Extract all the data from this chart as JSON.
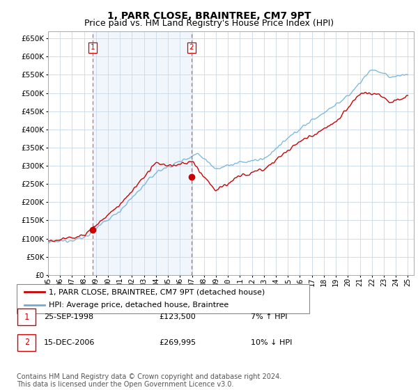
{
  "title": "1, PARR CLOSE, BRAINTREE, CM7 9PT",
  "subtitle": "Price paid vs. HM Land Registry's House Price Index (HPI)",
  "ytick_values": [
    0,
    50000,
    100000,
    150000,
    200000,
    250000,
    300000,
    350000,
    400000,
    450000,
    500000,
    550000,
    600000,
    650000
  ],
  "ylim": [
    0,
    670000
  ],
  "hpi_color": "#6baed6",
  "price_color": "#cc0000",
  "dashed_line_color": "#cc4444",
  "shading_color": "#ddeeff",
  "grid_color": "#c8d8e8",
  "background_color": "#ffffff",
  "legend_label_red": "1, PARR CLOSE, BRAINTREE, CM7 9PT (detached house)",
  "legend_label_blue": "HPI: Average price, detached house, Braintree",
  "sale1_label": "1",
  "sale2_label": "2",
  "sale1_date": "25-SEP-1998",
  "sale1_price": "£123,500",
  "sale1_hpi": "7% ↑ HPI",
  "sale2_date": "15-DEC-2006",
  "sale2_price": "£269,995",
  "sale2_hpi": "10% ↓ HPI",
  "footer": "Contains HM Land Registry data © Crown copyright and database right 2024.\nThis data is licensed under the Open Government Licence v3.0.",
  "sale1_year": 1998.73,
  "sale2_year": 2006.96,
  "sale1_value": 123500,
  "sale2_value": 269995,
  "title_fontsize": 10,
  "subtitle_fontsize": 9,
  "tick_fontsize": 7.5,
  "legend_fontsize": 8,
  "footer_fontsize": 7
}
